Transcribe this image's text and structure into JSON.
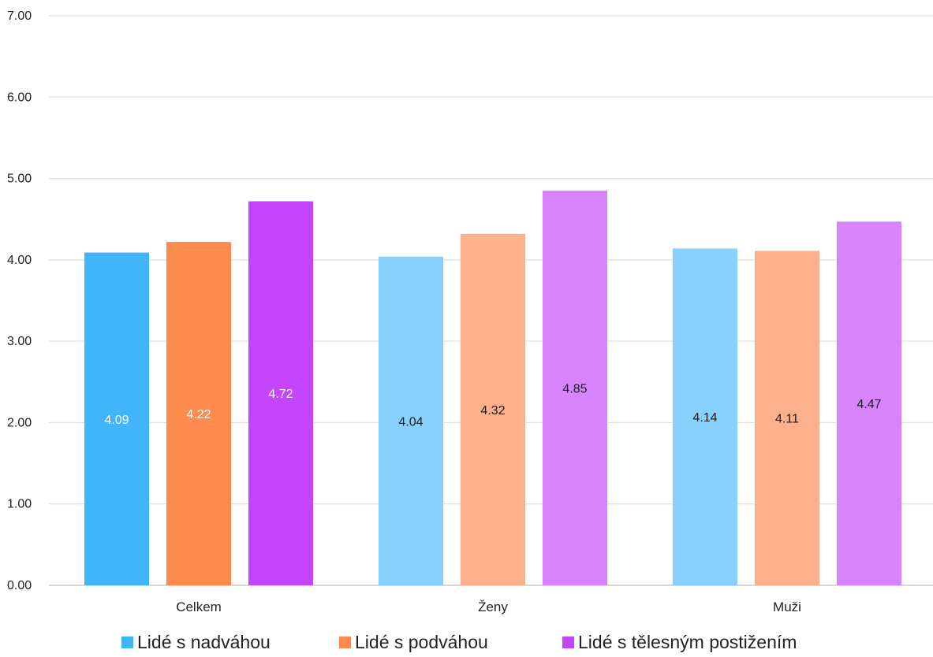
{
  "chart_data": {
    "type": "bar",
    "categories": [
      "Celkem",
      "Ženy",
      "Muži"
    ],
    "series": [
      {
        "name": "Lidé s nadváhou",
        "values": [
          4.09,
          4.04,
          4.14
        ],
        "colors": [
          "#41b4fa",
          "#87d1fc",
          "#87d1fc"
        ]
      },
      {
        "name": "Lidé s podváhou",
        "values": [
          4.22,
          4.32,
          4.11
        ],
        "colors": [
          "#fd8b4d",
          "#fdb08c",
          "#fdb08c"
        ]
      },
      {
        "name": "Lidé s tělesným postižením",
        "values": [
          4.72,
          4.85,
          4.47
        ],
        "colors": [
          "#c545fc",
          "#d884fd",
          "#d884fd"
        ]
      }
    ],
    "data_labels": [
      [
        "4.09",
        "4.04",
        "4.14"
      ],
      [
        "4.22",
        "4.32",
        "4.11"
      ],
      [
        "4.72",
        "4.85",
        "4.47"
      ]
    ],
    "data_label_colors": [
      "#ffffff",
      "#1a1a1a",
      "#1a1a1a"
    ],
    "ylim": [
      0,
      7
    ],
    "y_ticks": [
      0,
      1,
      2,
      3,
      4,
      5,
      6,
      7
    ],
    "y_tick_labels": [
      "0.00",
      "1.00",
      "2.00",
      "3.00",
      "4.00",
      "5.00",
      "6.00",
      "7.00"
    ],
    "grid": true,
    "legend_position": "bottom",
    "legend_colors": [
      "#41b4fa",
      "#fd8b4d",
      "#c545fc"
    ],
    "title": "",
    "xlabel": "",
    "ylabel": ""
  }
}
